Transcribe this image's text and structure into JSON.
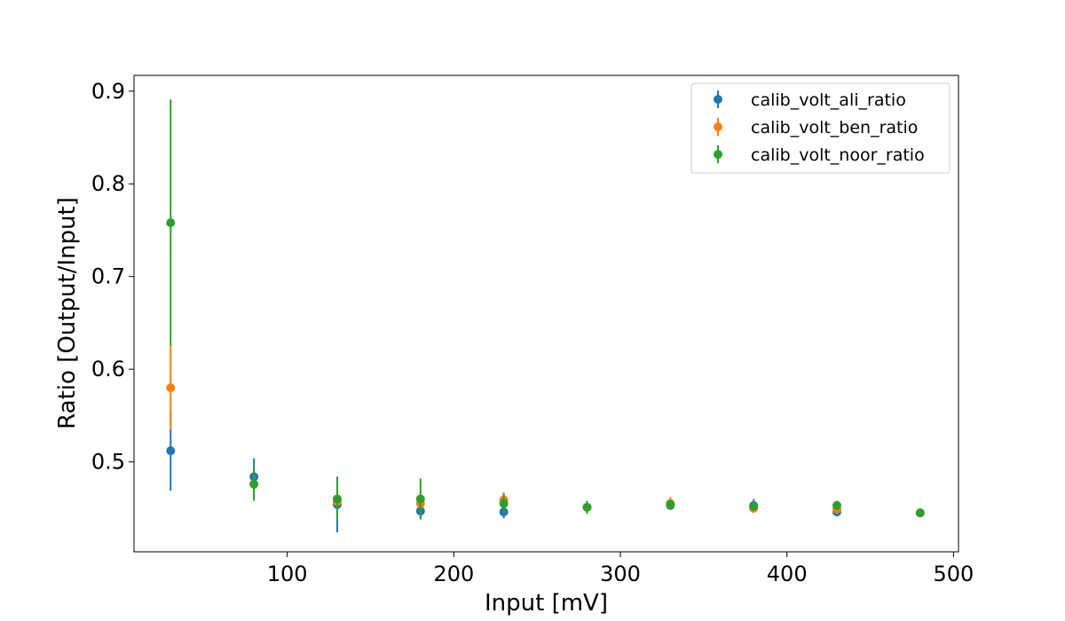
{
  "chart_data": {
    "type": "scatter",
    "xlabel": "Input [mV]",
    "ylabel": "Ratio [Output/Input]",
    "xlim": [
      8,
      503
    ],
    "ylim": [
      0.403,
      0.917
    ],
    "xticks": [
      100,
      200,
      300,
      400,
      500
    ],
    "yticks": [
      0.5,
      0.6,
      0.7,
      0.8,
      0.9
    ],
    "xtick_labels": [
      "100",
      "200",
      "300",
      "400",
      "500"
    ],
    "ytick_labels": [
      "0.5",
      "0.6",
      "0.7",
      "0.8",
      "0.9"
    ],
    "grid": false,
    "legend_position": "top-right",
    "series": [
      {
        "name": "calib_volt_ali_ratio",
        "color": "#1f77b4",
        "points": [
          {
            "x": 30,
            "y": 0.512,
            "err": 0.043
          },
          {
            "x": 80,
            "y": 0.484,
            "err": 0.02
          },
          {
            "x": 130,
            "y": 0.454,
            "err": 0.03
          },
          {
            "x": 180,
            "y": 0.447,
            "err": 0.009
          },
          {
            "x": 230,
            "y": 0.446,
            "err": 0.007
          },
          {
            "x": 280,
            "y": 0.451,
            "err": 0.005
          },
          {
            "x": 330,
            "y": 0.453,
            "err": 0.005
          },
          {
            "x": 380,
            "y": 0.453,
            "err": 0.007
          },
          {
            "x": 430,
            "y": 0.446,
            "err": 0.004
          },
          {
            "x": 480,
            "y": 0.445,
            "err": 0.002
          }
        ]
      },
      {
        "name": "calib_volt_ben_ratio",
        "color": "#ff7f0e",
        "points": [
          {
            "x": 30,
            "y": 0.58,
            "err": 0.045
          },
          {
            "x": 80,
            "y": 0.476,
            "err": 0.01
          },
          {
            "x": 130,
            "y": 0.457,
            "err": 0.008
          },
          {
            "x": 180,
            "y": 0.455,
            "err": 0.008
          },
          {
            "x": 230,
            "y": 0.459,
            "err": 0.008
          },
          {
            "x": 280,
            "y": 0.451,
            "err": 0.004
          },
          {
            "x": 330,
            "y": 0.455,
            "err": 0.007
          },
          {
            "x": 380,
            "y": 0.45,
            "err": 0.005
          },
          {
            "x": 430,
            "y": 0.449,
            "err": 0.005
          },
          {
            "x": 480,
            "y": 0.445,
            "err": 0.002
          }
        ]
      },
      {
        "name": "calib_volt_noor_ratio",
        "color": "#2ca02c",
        "points": [
          {
            "x": 30,
            "y": 0.758,
            "err": 0.133
          },
          {
            "x": 80,
            "y": 0.476,
            "err": 0.018
          },
          {
            "x": 130,
            "y": 0.46,
            "err": 0.022
          },
          {
            "x": 180,
            "y": 0.46,
            "err": 0.022
          },
          {
            "x": 230,
            "y": 0.455,
            "err": 0.011
          },
          {
            "x": 280,
            "y": 0.451,
            "err": 0.007
          },
          {
            "x": 330,
            "y": 0.454,
            "err": 0.005
          },
          {
            "x": 380,
            "y": 0.452,
            "err": 0.004
          },
          {
            "x": 430,
            "y": 0.453,
            "err": 0.005
          },
          {
            "x": 480,
            "y": 0.445,
            "err": 0.002
          }
        ]
      }
    ]
  }
}
